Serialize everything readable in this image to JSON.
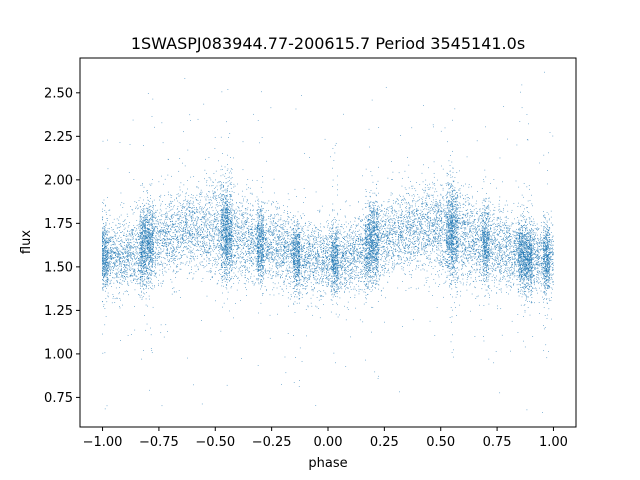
{
  "chart_data": {
    "type": "scatter",
    "title": "1SWASPJ083944.77-200615.7 Period 3545141.0s",
    "xlabel": "phase",
    "ylabel": "flux",
    "xlim": [
      -1.1,
      1.1
    ],
    "ylim": [
      0.58,
      2.7
    ],
    "x_ticks": [
      -1.0,
      -0.75,
      -0.5,
      -0.25,
      0.0,
      0.25,
      0.5,
      0.75,
      1.0
    ],
    "x_tick_labels": [
      "−1.00",
      "−0.75",
      "−0.50",
      "−0.25",
      "0.00",
      "0.25",
      "0.50",
      "0.75",
      "1.00"
    ],
    "y_ticks": [
      0.75,
      1.0,
      1.25,
      1.5,
      1.75,
      2.0,
      2.25,
      2.5
    ],
    "y_tick_labels": [
      "0.75",
      "1.00",
      "1.25",
      "1.50",
      "1.75",
      "2.00",
      "2.25",
      "2.50"
    ],
    "grid": false,
    "point_color": "#1f77b4",
    "series_profile": {
      "phase": [
        -1.0,
        -0.9,
        -0.8,
        -0.7,
        -0.6,
        -0.5,
        -0.4,
        -0.3,
        -0.2,
        -0.1,
        0.0,
        0.1,
        0.2,
        0.3,
        0.4,
        0.5,
        0.6,
        0.7,
        0.8,
        0.9,
        1.0
      ],
      "mean_flux": [
        1.55,
        1.56,
        1.63,
        1.68,
        1.72,
        1.72,
        1.67,
        1.63,
        1.6,
        1.55,
        1.54,
        1.55,
        1.63,
        1.68,
        1.72,
        1.72,
        1.67,
        1.63,
        1.6,
        1.55,
        1.54
      ],
      "scatter": [
        0.1,
        0.1,
        0.12,
        0.11,
        0.11,
        0.14,
        0.13,
        0.11,
        0.11,
        0.1,
        0.1,
        0.1,
        0.12,
        0.11,
        0.11,
        0.14,
        0.13,
        0.11,
        0.11,
        0.1,
        0.1
      ]
    },
    "dense_columns": [
      -0.99,
      -0.82,
      -0.79,
      -0.46,
      -0.44,
      -0.3,
      -0.14,
      0.03,
      0.18,
      0.21,
      0.54,
      0.56,
      0.7,
      0.86,
      0.89,
      0.97
    ],
    "approx_point_count": 18000
  }
}
